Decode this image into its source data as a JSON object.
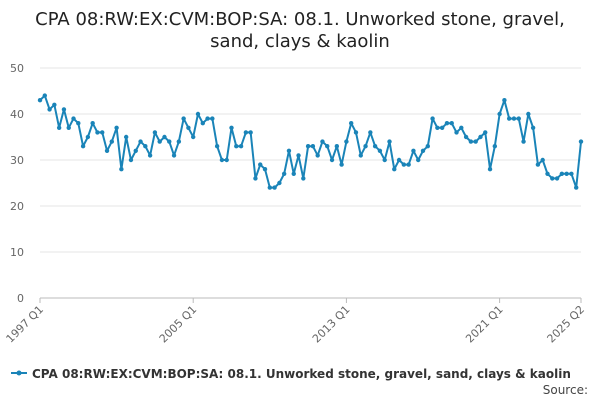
{
  "chart_data": {
    "type": "line",
    "title_lines": [
      "CPA 08:RW:EX:CVM:BOP:SA: 08.1. Unworked stone, gravel,",
      "sand, clays & kaolin"
    ],
    "ylim": [
      0,
      50
    ],
    "y_ticks": [
      "0",
      "10",
      "20",
      "30",
      "40",
      "50"
    ],
    "x_ticks": [
      "1997 Q1",
      "2005 Q1",
      "2013 Q1",
      "2021 Q1",
      "2025 Q2"
    ],
    "grid": "horizontal",
    "legend_position": "bottom",
    "series": [
      {
        "name": "CPA 08:RW:EX:CVM:BOP:SA: 08.1. Unworked stone, gravel, sand, clays & kaolin",
        "color": "#1a84b8",
        "x_start": "1997 Q1",
        "x_end": "2025 Q2",
        "values": [
          43,
          44,
          41,
          42,
          37,
          41,
          37,
          39,
          38,
          33,
          35,
          38,
          36,
          36,
          32,
          34,
          37,
          28,
          35,
          30,
          32,
          34,
          33,
          31,
          36,
          34,
          35,
          34,
          31,
          34,
          39,
          37,
          35,
          40,
          38,
          39,
          39,
          33,
          30,
          30,
          37,
          33,
          33,
          36,
          36,
          26,
          29,
          28,
          24,
          24,
          25,
          27,
          32,
          27,
          31,
          26,
          33,
          33,
          31,
          34,
          33,
          30,
          33,
          29,
          34,
          38,
          36,
          31,
          33,
          36,
          33,
          32,
          30,
          34,
          28,
          30,
          29,
          29,
          32,
          30,
          32,
          33,
          39,
          37,
          37,
          38,
          38,
          36,
          37,
          35,
          34,
          34,
          35,
          36,
          28,
          33,
          40,
          43,
          39,
          39,
          39,
          34,
          40,
          37,
          29,
          30,
          27,
          26,
          26,
          27,
          27,
          27,
          24,
          34
        ]
      }
    ]
  },
  "legend": {
    "label": "CPA 08:RW:EX:CVM:BOP:SA: 08.1. Unworked stone, gravel, sand, clays & kaolin"
  },
  "source": {
    "label": "Source:"
  }
}
